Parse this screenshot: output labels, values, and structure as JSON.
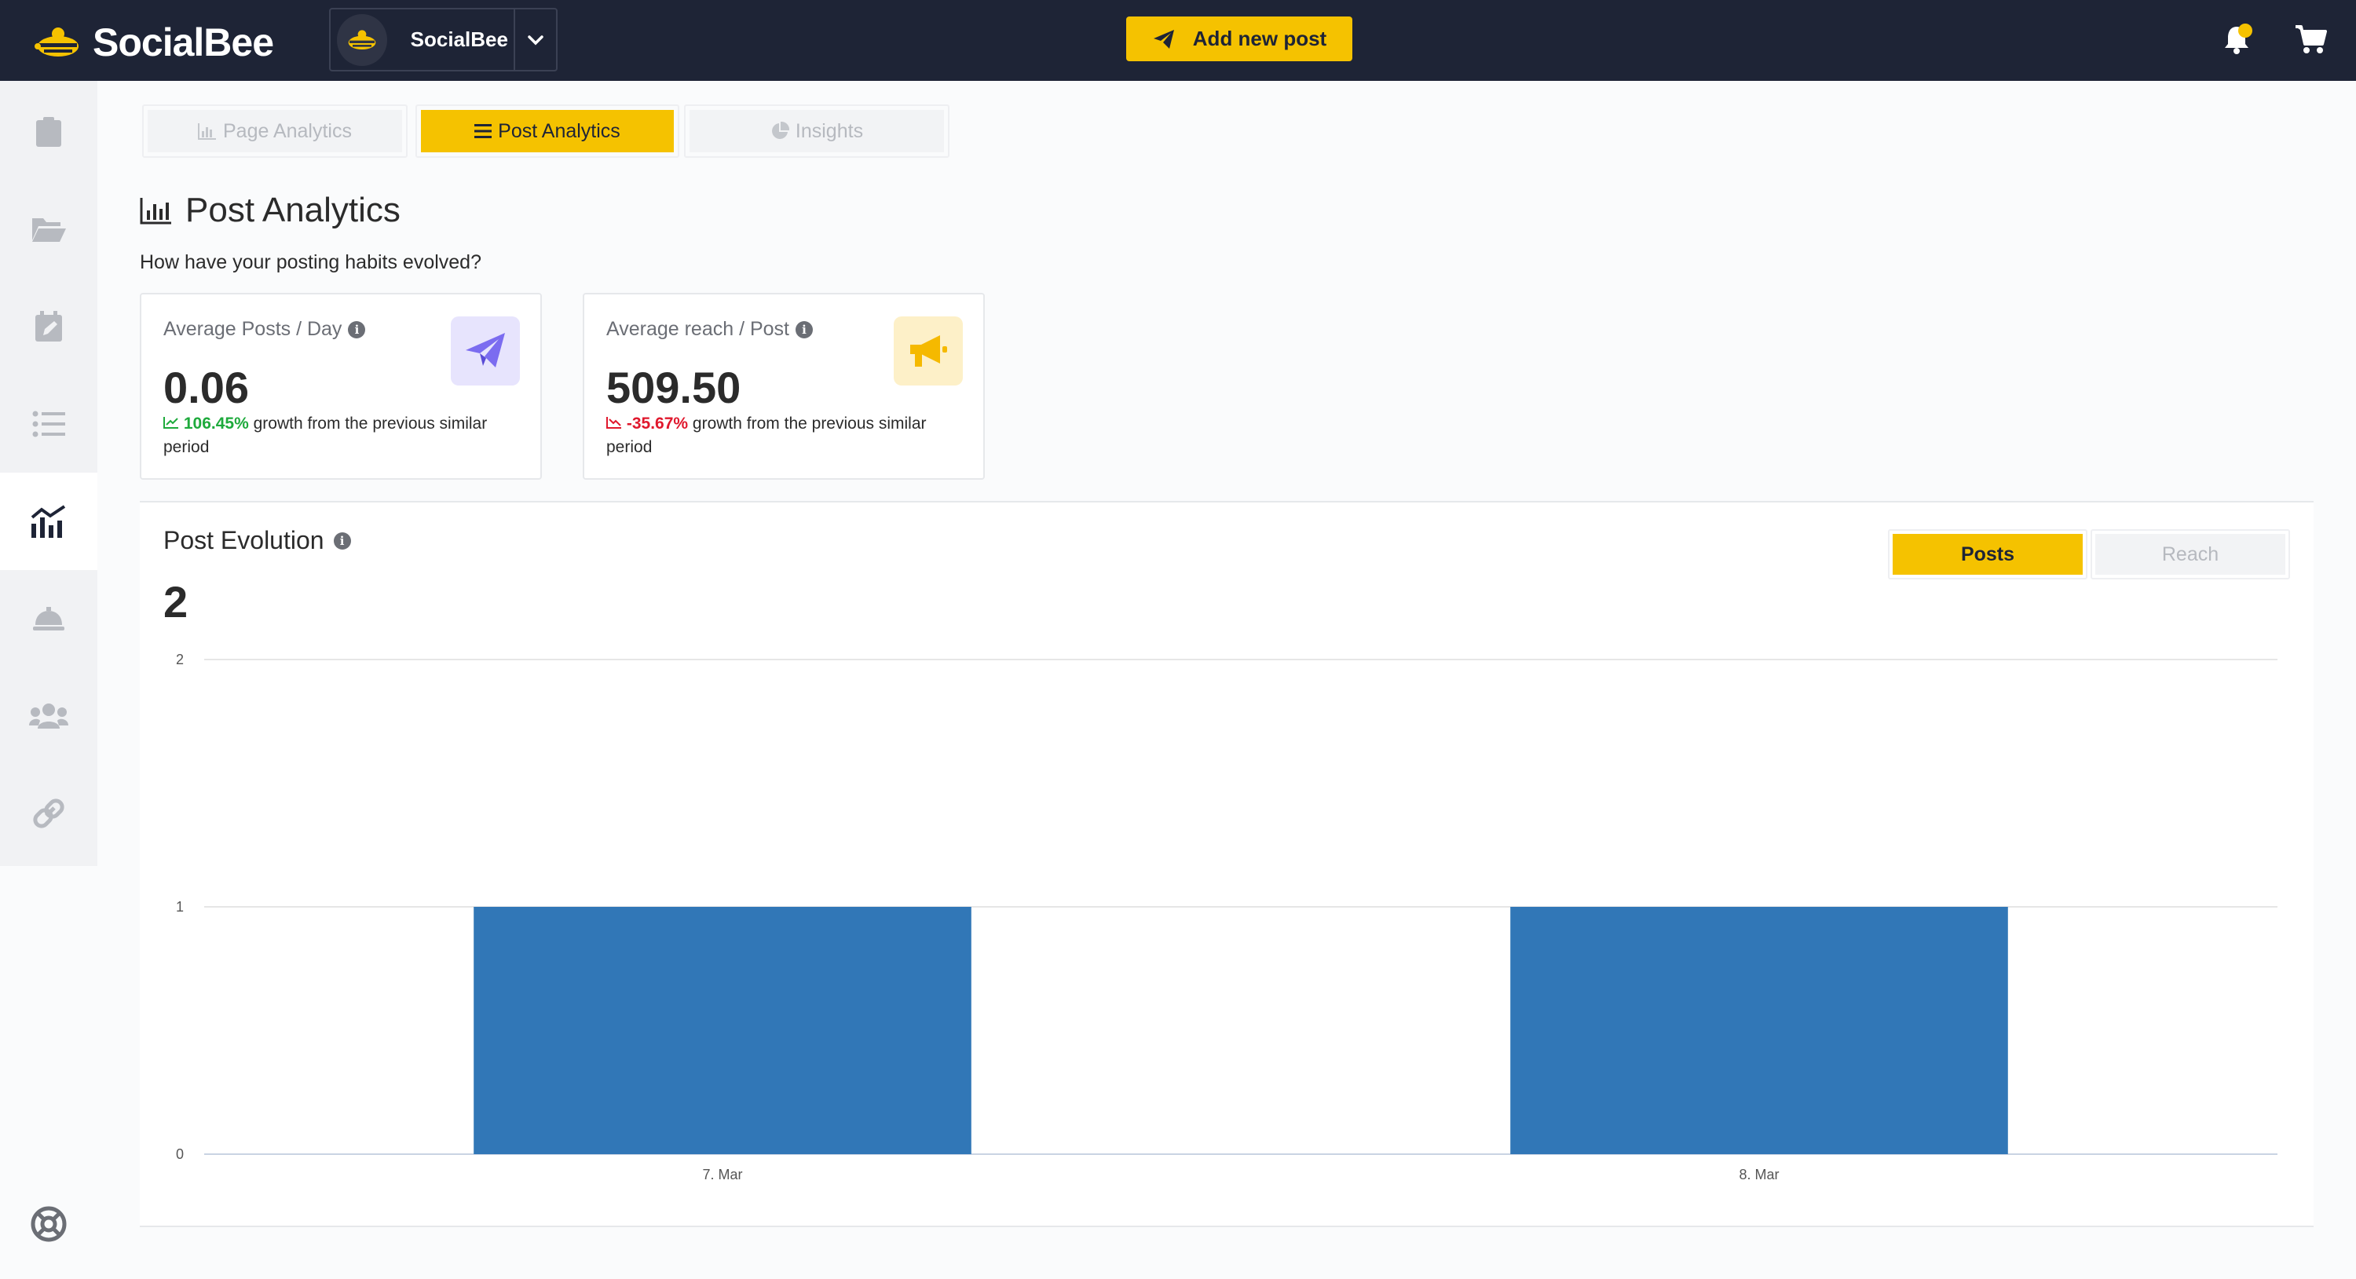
{
  "header": {
    "logo_text": "SocialBee",
    "account_name": "SocialBee",
    "add_post_label": "Add new post",
    "accent": "#f5c200"
  },
  "sidebar": {
    "items": [
      {
        "icon": "clipboard-icon"
      },
      {
        "icon": "folder-open-icon"
      },
      {
        "icon": "calendar-edit-icon"
      },
      {
        "icon": "list-icon"
      },
      {
        "icon": "analytics-chart-icon",
        "active": true
      },
      {
        "icon": "concierge-bell-icon"
      },
      {
        "icon": "users-icon"
      },
      {
        "icon": "link-icon"
      }
    ],
    "help_icon": "life-ring-icon"
  },
  "tabs": [
    {
      "label": "Page Analytics",
      "icon": "bar-chart-icon",
      "active": false
    },
    {
      "label": "Post Analytics",
      "icon": "bars-icon",
      "active": true
    },
    {
      "label": "Insights",
      "icon": "pie-chart-icon",
      "active": false
    }
  ],
  "page": {
    "title": "Post Analytics",
    "subtitle": "How have your posting habits evolved?"
  },
  "metrics": [
    {
      "label": "Average Posts / Day",
      "value": "0.06",
      "growth": "106.45%",
      "growth_text": "growth from the previous similar period",
      "trend": "up",
      "icon": "paper-plane-icon"
    },
    {
      "label": "Average reach / Post",
      "value": "509.50",
      "growth": "-35.67%",
      "growth_text": "growth from the previous similar period",
      "trend": "down",
      "icon": "megaphone-icon"
    }
  ],
  "evolution": {
    "title": "Post Evolution",
    "total": "2",
    "toggles": [
      {
        "label": "Posts",
        "active": true
      },
      {
        "label": "Reach",
        "active": false
      }
    ]
  },
  "chart_data": {
    "type": "bar",
    "categories": [
      "7. Mar",
      "8. Mar"
    ],
    "values": [
      1,
      1
    ],
    "yticks": [
      "0",
      "1",
      "2"
    ],
    "ylim": [
      0,
      2
    ],
    "grid": true,
    "bar_color": "#3177b7"
  }
}
